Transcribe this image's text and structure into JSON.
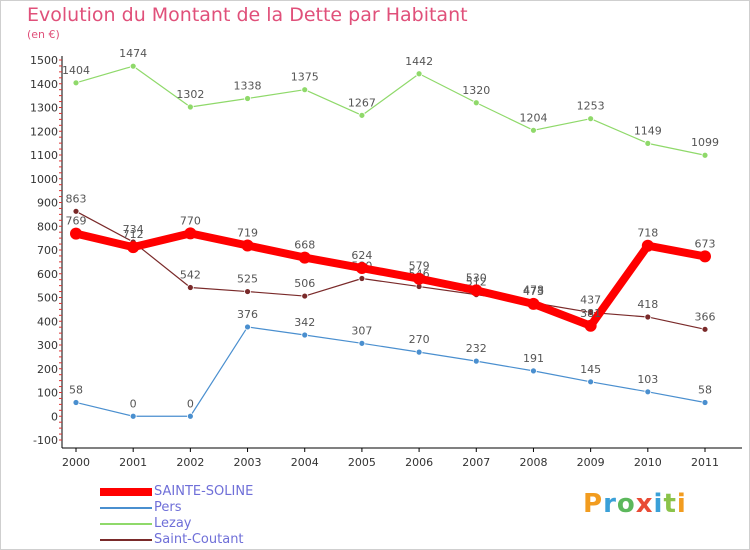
{
  "title": "Evolution du Montant de la Dette par Habitant",
  "unit_label": "(en €)",
  "logo": {
    "text": "Proxiti",
    "colors": [
      "#f29c1f",
      "#3aa0d8",
      "#5cb85c",
      "#e94b35",
      "#3aa0d8",
      "#8bc34a",
      "#f29c1f"
    ]
  },
  "chart_data": {
    "type": "line",
    "x": [
      "2000",
      "2001",
      "2002",
      "2003",
      "2004",
      "2005",
      "2006",
      "2007",
      "2008",
      "2009",
      "2010",
      "2011"
    ],
    "ylim": [
      -100,
      1500
    ],
    "yticks": [
      -100,
      0,
      100,
      200,
      300,
      400,
      500,
      600,
      700,
      800,
      900,
      1000,
      1100,
      1200,
      1300,
      1400,
      1500
    ],
    "grid": false,
    "legend_position": "bottom-left",
    "series": [
      {
        "name": "Pers",
        "color": "#4a8fcf",
        "values": [
          58,
          0,
          0,
          376,
          342,
          307,
          270,
          232,
          191,
          145,
          103,
          58
        ]
      },
      {
        "name": "Lezay",
        "color": "#8fd96a",
        "values": [
          1404,
          1474,
          1302,
          1338,
          1375,
          1267,
          1442,
          1320,
          1204,
          1253,
          1149,
          1099
        ]
      },
      {
        "name": "Saint-Coutant",
        "color": "#7a2a2a",
        "values": [
          863,
          734,
          542,
          525,
          506,
          580,
          546,
          512,
          478,
          437,
          418,
          366
        ]
      },
      {
        "name": "SAINTE-SOLINE",
        "color": "#ff0000",
        "values": [
          769,
          712,
          770,
          719,
          668,
          624,
          579,
          530,
          473,
          381,
          718,
          673
        ]
      }
    ]
  }
}
